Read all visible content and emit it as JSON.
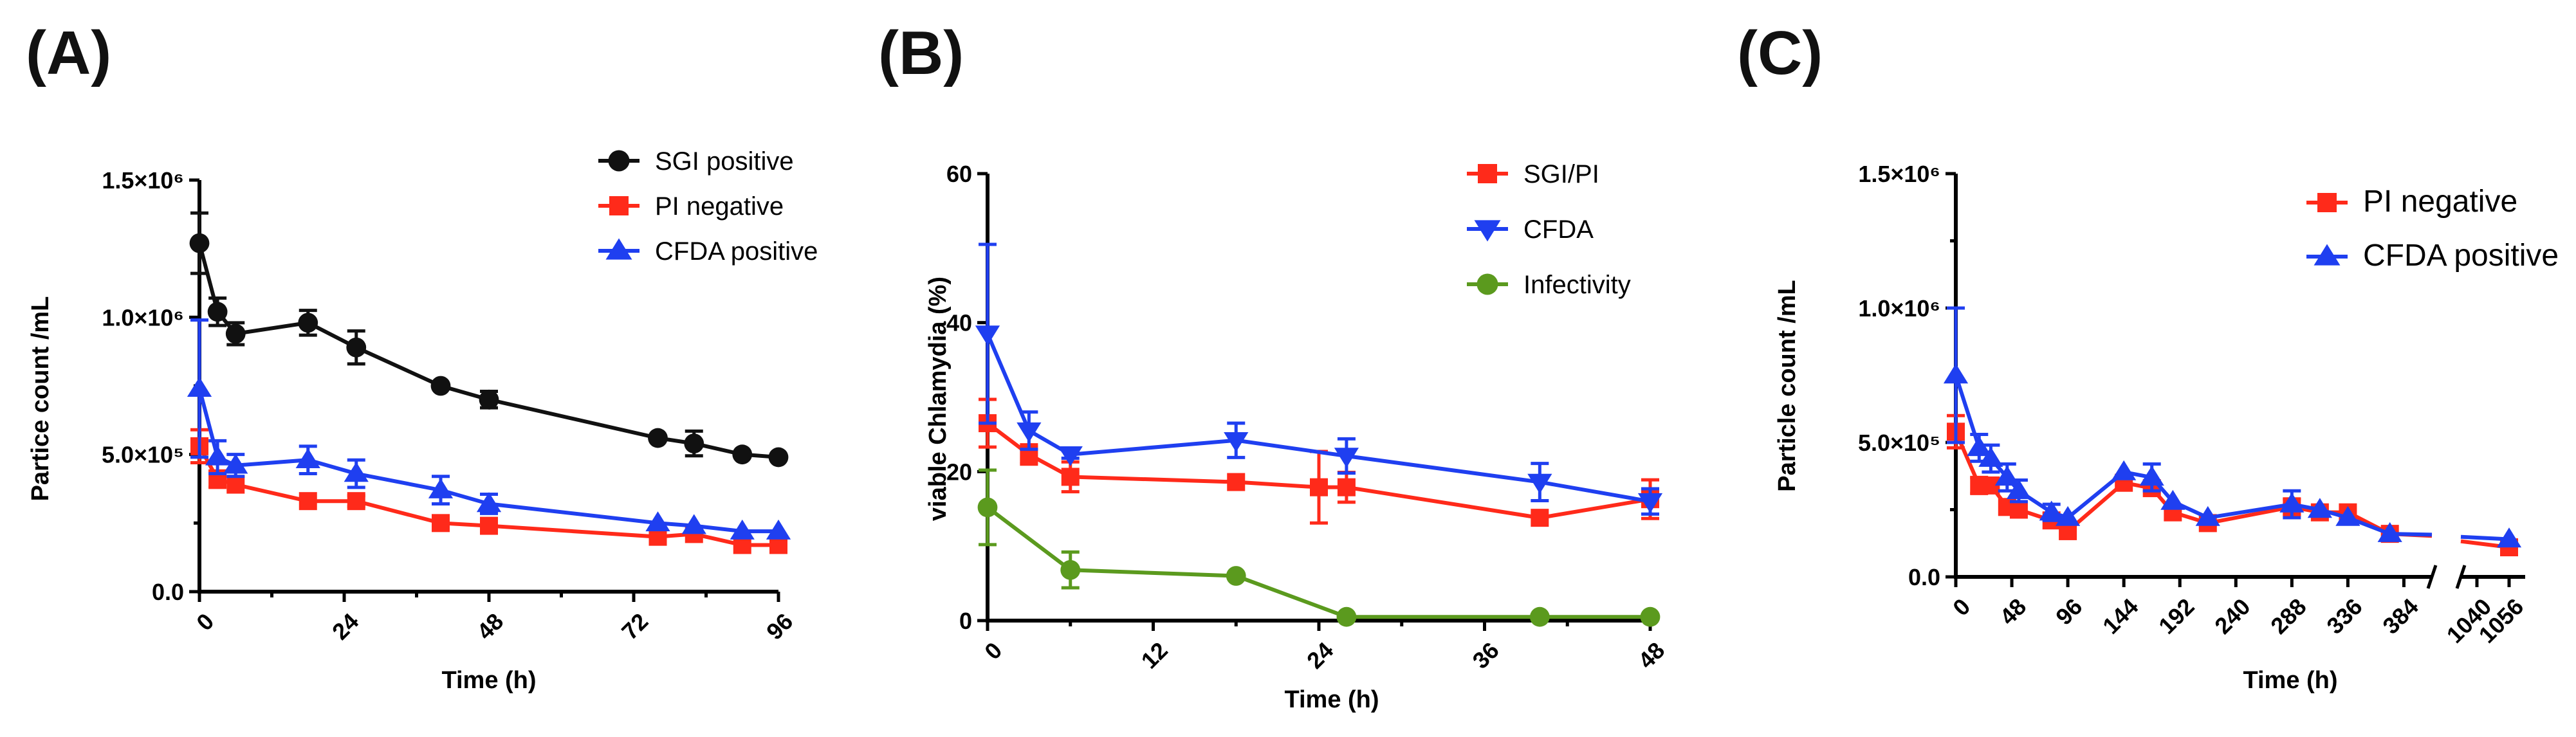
{
  "colors": {
    "black": "#111111",
    "red": "#ff2a1a",
    "blue": "#1f3ff0",
    "green": "#5b9a1e"
  },
  "chart_data": [
    {
      "id": "A",
      "panel_label": "(A)",
      "type": "line",
      "xlabel": "Time (h)",
      "ylabel": "Partice count /mL",
      "xlim": [
        0,
        96
      ],
      "ylim": [
        0,
        1500000
      ],
      "xticks": [
        0,
        24,
        48,
        72,
        96
      ],
      "xtick_labels": [
        "0",
        "24",
        "48",
        "72",
        "96"
      ],
      "yticks": [
        0,
        500000,
        1000000,
        1500000
      ],
      "ytick_labels": [
        "0.0",
        "5.0×10⁵",
        "1.0×10⁶",
        "1.5×10⁶"
      ],
      "legend_position": "top-right",
      "series": [
        {
          "name": "SGI positive",
          "color": "#111111",
          "marker": "circle",
          "x": [
            0,
            3,
            6,
            18,
            26,
            40,
            48,
            76,
            82,
            90,
            96
          ],
          "y": [
            1270000,
            1020000,
            940000,
            980000,
            890000,
            750000,
            700000,
            560000,
            540000,
            500000,
            490000
          ],
          "err": [
            110000,
            50000,
            40000,
            45000,
            60000,
            0,
            30000,
            0,
            45000,
            0,
            0
          ]
        },
        {
          "name": "PI negative",
          "color": "#ff2a1a",
          "marker": "square",
          "x": [
            0,
            3,
            6,
            18,
            26,
            40,
            48,
            76,
            82,
            90,
            96
          ],
          "y": [
            530000,
            410000,
            390000,
            330000,
            330000,
            250000,
            240000,
            200000,
            210000,
            170000,
            170000
          ],
          "err": [
            60000,
            30000,
            0,
            0,
            20000,
            0,
            0,
            0,
            0,
            0,
            0
          ]
        },
        {
          "name": "CFDA positive",
          "color": "#1f3ff0",
          "marker": "triangle-up",
          "x": [
            0,
            3,
            6,
            18,
            26,
            40,
            48,
            76,
            82,
            90,
            96
          ],
          "y": [
            740000,
            490000,
            460000,
            480000,
            430000,
            370000,
            320000,
            250000,
            240000,
            220000,
            220000
          ],
          "err": [
            250000,
            60000,
            40000,
            50000,
            50000,
            50000,
            35000,
            0,
            0,
            0,
            0
          ]
        }
      ]
    },
    {
      "id": "B",
      "panel_label": "(B)",
      "type": "line",
      "xlabel": "Time (h)",
      "ylabel": "viable Chlamydia (%)",
      "xlim": [
        0,
        48
      ],
      "ylim": [
        0,
        60
      ],
      "xticks": [
        0,
        12,
        24,
        36,
        48
      ],
      "xtick_labels": [
        "0",
        "12",
        "24",
        "36",
        "48"
      ],
      "yticks": [
        0,
        20,
        40,
        60
      ],
      "ytick_labels": [
        "0",
        "20",
        "40",
        "60"
      ],
      "legend_position": "top-right",
      "series": [
        {
          "name": "SGI/PI",
          "color": "#ff2a1a",
          "marker": "square",
          "x": [
            0,
            3,
            6,
            18,
            24,
            26,
            40,
            48
          ],
          "y": [
            26.5,
            22.3,
            19.3,
            18.6,
            17.9,
            17.9,
            13.8,
            16.3
          ],
          "err": [
            3.2,
            1.3,
            2.0,
            0,
            4.8,
            2.0,
            0,
            2.6
          ]
        },
        {
          "name": "CFDA",
          "color": "#1f3ff0",
          "marker": "triangle-down",
          "x": [
            0,
            3,
            6,
            18,
            26,
            40,
            48
          ],
          "y": [
            38.5,
            25.5,
            22.3,
            24.2,
            22.1,
            18.6,
            16.0
          ],
          "err": [
            12.0,
            2.5,
            0.5,
            2.3,
            2.3,
            2.5,
            1.7
          ]
        },
        {
          "name": "Infectivity",
          "color": "#5b9a1e",
          "marker": "circle",
          "x": [
            0,
            6,
            18,
            26,
            40,
            48
          ],
          "y": [
            15.2,
            6.8,
            6.0,
            0.5,
            0.5,
            0.5
          ],
          "err": [
            5.0,
            2.4,
            0,
            0,
            0,
            0
          ]
        }
      ]
    },
    {
      "id": "C",
      "panel_label": "(C)",
      "type": "line",
      "xlabel": "Time (h)",
      "ylabel": "Particle count /mL",
      "xlim": [
        0,
        408
      ],
      "x_break": {
        "after": 408,
        "segment2": [
          1032,
          1064
        ]
      },
      "ylim": [
        0,
        1500000
      ],
      "xticks": [
        0,
        48,
        96,
        144,
        192,
        240,
        288,
        336,
        384,
        1040,
        1056
      ],
      "xtick_labels": [
        "0",
        "48",
        "96",
        "144",
        "192",
        "240",
        "288",
        "336",
        "384",
        "1040",
        "1056"
      ],
      "yticks": [
        0,
        500000,
        1000000,
        1500000
      ],
      "ytick_labels": [
        "0.0",
        "5.0×10⁵",
        "1.0×10⁶",
        "1.5×10⁶"
      ],
      "legend_position": "top-right",
      "series": [
        {
          "name": "PI negative",
          "color": "#ff2a1a",
          "marker": "square",
          "x": [
            0,
            20,
            30,
            44,
            54,
            82,
            96,
            144,
            168,
            186,
            216,
            288,
            312,
            336,
            372,
            1056
          ],
          "y": [
            540000,
            340000,
            340000,
            260000,
            250000,
            210000,
            170000,
            350000,
            330000,
            240000,
            200000,
            260000,
            240000,
            240000,
            160000,
            110000
          ],
          "err": [
            60000,
            30000,
            0,
            0,
            0,
            0,
            0,
            0,
            0,
            0,
            0,
            30000,
            0,
            0,
            0,
            0
          ]
        },
        {
          "name": "CFDA positive",
          "color": "#1f3ff0",
          "marker": "triangle-up",
          "x": [
            0,
            20,
            30,
            44,
            54,
            82,
            96,
            144,
            168,
            186,
            216,
            288,
            312,
            336,
            372,
            1056
          ],
          "y": [
            750000,
            480000,
            440000,
            370000,
            320000,
            240000,
            220000,
            390000,
            370000,
            280000,
            220000,
            270000,
            250000,
            220000,
            160000,
            140000
          ],
          "err": [
            250000,
            50000,
            50000,
            50000,
            40000,
            30000,
            0,
            0,
            50000,
            0,
            0,
            50000,
            0,
            0,
            0,
            0
          ]
        }
      ]
    }
  ]
}
